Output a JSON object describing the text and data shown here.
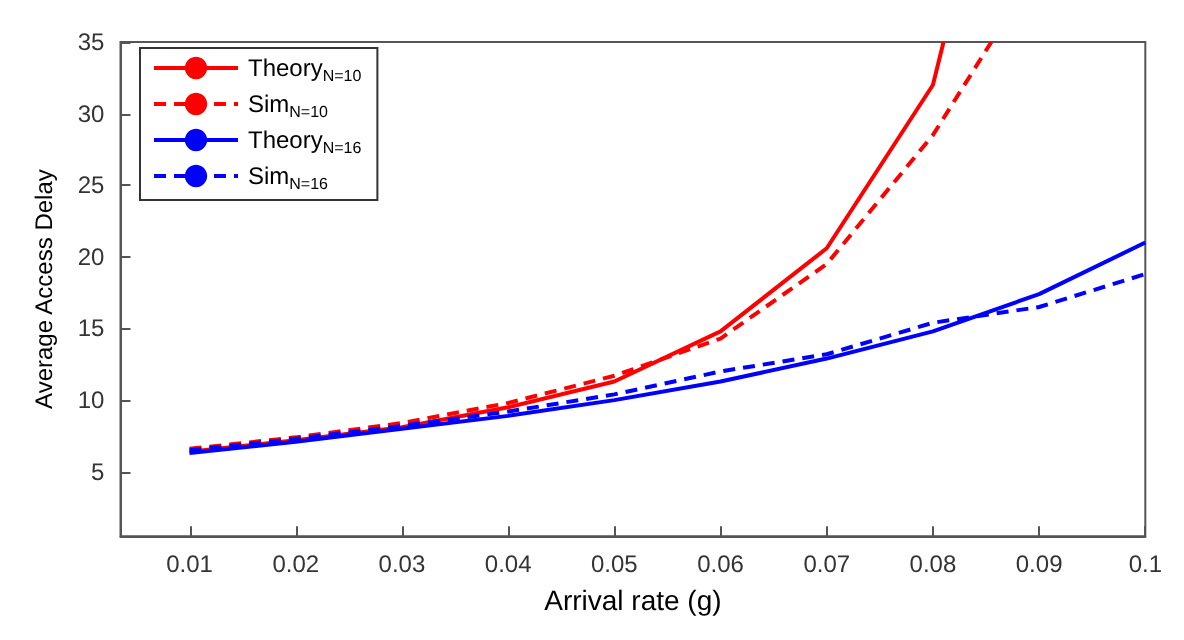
{
  "chart_data": {
    "type": "line",
    "xlabel": "Arrival rate (g)",
    "ylabel": "Average Access Delay",
    "xlim": [
      0.0035,
      0.1
    ],
    "ylim": [
      0.5,
      35
    ],
    "xticks": [
      0.01,
      0.02,
      0.03,
      0.04,
      0.05,
      0.06,
      0.07,
      0.08,
      0.09,
      0.1
    ],
    "yticks": [
      5,
      10,
      15,
      20,
      25,
      30,
      35
    ],
    "grid": false,
    "legend": "top left",
    "marker": "none",
    "series": [
      {
        "name": "Theory$_{N=10}$",
        "color": "#ff0000",
        "line_style": "solid",
        "x": [
          0.01,
          0.02,
          0.03,
          0.04,
          0.05,
          0.06,
          0.07,
          0.08,
          0.081
        ],
        "values": [
          6.4,
          7.2,
          8.1,
          9.5,
          11.3,
          14.8,
          20.6,
          32,
          35
        ]
      },
      {
        "name": "Sim$_{N=10}$",
        "color": "#ff0000",
        "line_style": "dashed",
        "x": [
          0.01,
          0.02,
          0.03,
          0.04,
          0.05,
          0.06,
          0.07,
          0.08,
          0.0855
        ],
        "values": [
          6.6,
          7.4,
          8.4,
          9.8,
          11.7,
          14.3,
          19.5,
          28.5,
          35
        ]
      },
      {
        "name": "Theory$_{N=16}$",
        "color": "#0000ff",
        "line_style": "solid",
        "x": [
          0.01,
          0.02,
          0.03,
          0.04,
          0.05,
          0.06,
          0.07,
          0.08,
          0.09,
          0.1
        ],
        "values": [
          6.3,
          7.1,
          8.0,
          8.9,
          10.0,
          11.3,
          12.9,
          14.8,
          17.4,
          21.0
        ]
      },
      {
        "name": "Sim$_{N=16}$",
        "color": "#0000ff",
        "line_style": "dashed",
        "x": [
          0.01,
          0.02,
          0.03,
          0.04,
          0.05,
          0.06,
          0.07,
          0.08,
          0.09,
          0.1
        ],
        "values": [
          6.5,
          7.3,
          8.2,
          9.2,
          10.4,
          12.0,
          13.2,
          15.4,
          16.5,
          18.8
        ]
      }
    ]
  }
}
